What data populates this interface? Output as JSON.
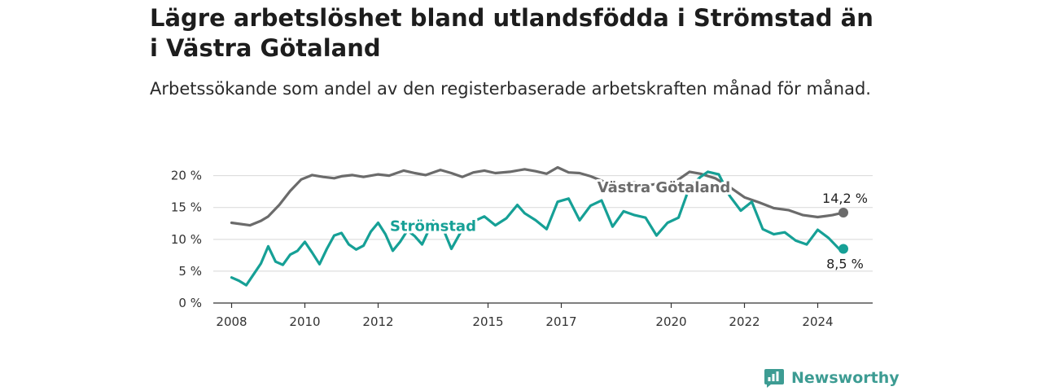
{
  "title": "Lägre arbetslöshet bland utlandsfödda i Strömstad än i Västra Götaland",
  "subtitle": "Arbetssökande som andel av den registerbaserade arbetskraften månad för månad.",
  "brand": {
    "name": "Newsworthy",
    "color": "#3d9c93"
  },
  "chart_data": {
    "type": "line",
    "title": "Lägre arbetslöshet bland utlandsfödda i Strömstad än i Västra Götaland",
    "subtitle": "Arbetssökande som andel av den registerbaserade arbetskraften månad för månad.",
    "x_ticks": [
      "2008",
      "2010",
      "2012",
      "2015",
      "2017",
      "2020",
      "2022",
      "2024"
    ],
    "y_ticks": [
      "0 %",
      "5 %",
      "10 %",
      "15 %",
      "20 %"
    ],
    "ylim": [
      0,
      22
    ],
    "grid": true,
    "legend": "inline labels",
    "series": [
      {
        "name": "Västra Götaland",
        "color": "#6b6b6b",
        "end_label": "14,2 %",
        "x": [
          2008.0,
          2008.5,
          2008.8,
          2009.0,
          2009.3,
          2009.6,
          2009.9,
          2010.2,
          2010.5,
          2010.8,
          2011.0,
          2011.3,
          2011.6,
          2012.0,
          2012.3,
          2012.7,
          2013.0,
          2013.3,
          2013.7,
          2014.0,
          2014.3,
          2014.6,
          2014.9,
          2015.2,
          2015.6,
          2016.0,
          2016.3,
          2016.6,
          2016.9,
          2017.2,
          2017.5,
          2017.8,
          2018.1,
          2018.4,
          2018.7,
          2019.0,
          2019.3,
          2019.6,
          2019.9,
          2020.2,
          2020.5,
          2020.8,
          2021.2,
          2021.6,
          2022.0,
          2022.4,
          2022.8,
          2023.2,
          2023.6,
          2024.0,
          2024.4,
          2024.7
        ],
        "y": [
          12.6,
          12.2,
          12.9,
          13.6,
          15.4,
          17.6,
          19.4,
          20.1,
          19.8,
          19.6,
          19.9,
          20.1,
          19.8,
          20.2,
          20.0,
          20.8,
          20.4,
          20.1,
          20.9,
          20.4,
          19.8,
          20.5,
          20.8,
          20.4,
          20.6,
          21.0,
          20.7,
          20.3,
          21.3,
          20.5,
          20.4,
          19.9,
          19.2,
          18.6,
          18.8,
          18.9,
          18.4,
          18.7,
          18.1,
          19.4,
          20.6,
          20.3,
          19.6,
          18.2,
          16.6,
          15.8,
          14.9,
          14.6,
          13.8,
          13.5,
          13.8,
          14.2
        ]
      },
      {
        "name": "Strömstad",
        "color": "#16a096",
        "end_label": "8,5 %",
        "x": [
          2008.0,
          2008.2,
          2008.4,
          2008.6,
          2008.8,
          2009.0,
          2009.2,
          2009.4,
          2009.6,
          2009.8,
          2010.0,
          2010.2,
          2010.4,
          2010.6,
          2010.8,
          2011.0,
          2011.2,
          2011.4,
          2011.6,
          2011.8,
          2012.0,
          2012.2,
          2012.4,
          2012.6,
          2012.8,
          2013.0,
          2013.2,
          2013.5,
          2013.8,
          2014.0,
          2014.3,
          2014.6,
          2014.9,
          2015.2,
          2015.5,
          2015.8,
          2016.0,
          2016.3,
          2016.6,
          2016.9,
          2017.2,
          2017.5,
          2017.8,
          2018.1,
          2018.4,
          2018.7,
          2019.0,
          2019.3,
          2019.6,
          2019.9,
          2020.2,
          2020.5,
          2020.8,
          2021.0,
          2021.3,
          2021.6,
          2021.9,
          2022.2,
          2022.5,
          2022.8,
          2023.1,
          2023.4,
          2023.7,
          2024.0,
          2024.3,
          2024.6,
          2024.7
        ],
        "y": [
          4.0,
          3.5,
          2.8,
          4.5,
          6.2,
          8.9,
          6.5,
          6.0,
          7.6,
          8.2,
          9.6,
          7.9,
          6.1,
          8.5,
          10.6,
          11.0,
          9.2,
          8.4,
          9.0,
          11.2,
          12.6,
          10.8,
          8.2,
          9.6,
          11.4,
          10.5,
          9.2,
          12.9,
          11.3,
          8.5,
          11.6,
          12.8,
          13.6,
          12.2,
          13.3,
          15.4,
          14.1,
          13.0,
          11.6,
          15.9,
          16.4,
          13.0,
          15.3,
          16.1,
          12.0,
          14.4,
          13.8,
          13.4,
          10.6,
          12.6,
          13.4,
          18.2,
          19.8,
          20.6,
          20.2,
          16.8,
          14.5,
          15.9,
          11.6,
          10.8,
          11.1,
          9.8,
          9.2,
          11.5,
          10.2,
          8.4,
          8.5
        ]
      }
    ]
  }
}
